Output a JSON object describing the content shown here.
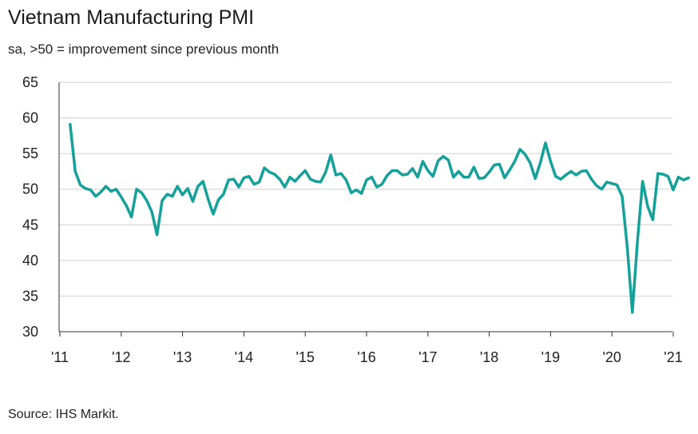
{
  "title": "Vietnam Manufacturing PMI",
  "subtitle": "sa, >50 = improvement since previous month",
  "source": "Source: IHS Markit.",
  "colors": {
    "line": "#16a09a",
    "grid": "#d0d0d0",
    "axis": "#333333"
  },
  "chart_data": {
    "type": "line",
    "title": "Vietnam Manufacturing PMI",
    "subtitle": "sa, >50 = improvement since previous month",
    "xlabel": "",
    "ylabel": "",
    "ylim": [
      30,
      65
    ],
    "yticks": [
      30,
      35,
      40,
      45,
      50,
      55,
      60,
      65
    ],
    "xticks": [
      "'11",
      "'12",
      "'13",
      "'14",
      "'15",
      "'16",
      "'17",
      "'18",
      "'19",
      "'20",
      "'21"
    ],
    "grid": "horizontal",
    "legend": "none",
    "x_start": "2011-03",
    "x_frequency": "monthly",
    "series": [
      {
        "values": [
          59.1,
          52.5,
          50.6,
          50.1,
          49.9,
          49.0,
          49.6,
          50.4,
          49.7,
          50.0,
          48.9,
          47.7,
          46.1,
          50.0,
          49.5,
          48.4,
          46.8,
          43.6,
          48.4,
          49.3,
          49.0,
          50.4,
          49.2,
          50.1,
          48.3,
          50.4,
          51.1,
          48.6,
          46.5,
          48.5,
          49.3,
          51.3,
          51.4,
          50.3,
          51.6,
          51.8,
          50.7,
          51.0,
          53.0,
          52.4,
          52.1,
          51.4,
          50.3,
          51.7,
          51.1,
          51.9,
          52.6,
          51.4,
          51.1,
          51.0,
          52.4,
          54.8,
          52.0,
          52.2,
          51.3,
          49.5,
          49.9,
          49.4,
          51.3,
          51.7,
          50.3,
          50.7,
          51.9,
          52.6,
          52.6,
          52.0,
          52.1,
          52.9,
          51.7,
          53.9,
          52.6,
          51.8,
          54.0,
          54.6,
          54.1,
          51.7,
          52.5,
          51.7,
          51.7,
          53.1,
          51.5,
          51.6,
          52.4,
          53.4,
          53.5,
          51.6,
          52.7,
          53.9,
          55.6,
          54.9,
          53.7,
          51.5,
          53.7,
          56.5,
          53.9,
          51.8,
          51.4,
          52.0,
          52.5,
          52.0,
          52.5,
          52.6,
          51.4,
          50.5,
          50.0,
          51.0,
          50.8,
          50.6,
          49.0,
          41.9,
          32.7,
          42.7,
          51.1,
          47.6,
          45.7,
          52.2,
          52.1,
          51.8,
          49.9,
          51.7,
          51.3,
          51.6
        ]
      }
    ]
  }
}
